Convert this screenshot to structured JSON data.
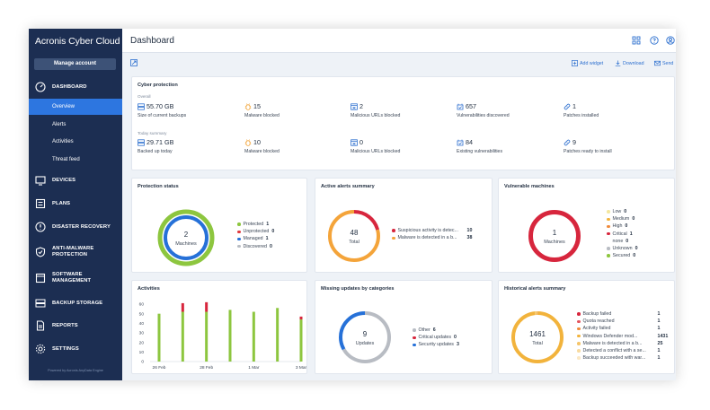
{
  "app": {
    "logo": "Acronis Cyber Cloud",
    "manage_account": "Manage account",
    "powered_by": "Powered by Acronis AnyData Engine"
  },
  "sidebar": {
    "dashboard": "DASHBOARD",
    "sub": [
      "Overview",
      "Alerts",
      "Activities",
      "Threat feed"
    ],
    "devices": "DEVICES",
    "plans": "PLANS",
    "disaster_recovery": "DISASTER RECOVERY",
    "anti_malware": [
      "ANTI-MALWARE",
      "PROTECTION"
    ],
    "software_mgmt": [
      "SOFTWARE",
      "MANAGEMENT"
    ],
    "backup_storage": "BACKUP STORAGE",
    "reports": "REPORTS",
    "settings": "SETTINGS"
  },
  "header": {
    "title": "Dashboard"
  },
  "toolbar": {
    "add_widget": "Add widget",
    "download": "Download",
    "send": "Send"
  },
  "cyber_protection": {
    "title": "Cyber protection",
    "overall_label": "Overall",
    "today_label": "Today summary",
    "overall": [
      {
        "value": "55.70 GB",
        "label": "Size of current backups",
        "icon": "storage-icon"
      },
      {
        "value": "15",
        "label": "Malware blocked",
        "icon": "bug-icon"
      },
      {
        "value": "2",
        "label": "Malicious URLs blocked",
        "icon": "web-block-icon"
      },
      {
        "value": "657",
        "label": "Vulnerabilities discovered",
        "icon": "vulnerability-icon"
      },
      {
        "value": "1",
        "label": "Patches installed",
        "icon": "patch-icon"
      }
    ],
    "today": [
      {
        "value": "29.71 GB",
        "label": "Backed up today",
        "icon": "storage-icon"
      },
      {
        "value": "10",
        "label": "Malware blocked",
        "icon": "bug-icon"
      },
      {
        "value": "0",
        "label": "Malicious URLs blocked",
        "icon": "web-block-icon"
      },
      {
        "value": "84",
        "label": "Existing vulnerabilities",
        "icon": "vulnerability-icon"
      },
      {
        "value": "9",
        "label": "Patches ready to install",
        "icon": "patch-icon"
      }
    ]
  },
  "protection_status": {
    "title": "Protection status",
    "center_value": "2",
    "center_label": "Machines",
    "legend": [
      {
        "label": "Protected",
        "value": "1",
        "color": "#8dc63f"
      },
      {
        "label": "Unprotected",
        "value": "0",
        "color": "#e0393e"
      },
      {
        "label": "Managed",
        "value": "1",
        "color": "#2671d8"
      },
      {
        "label": "Discovered",
        "value": "0",
        "color": "#b8bcc3"
      }
    ]
  },
  "active_alerts": {
    "title": "Active alerts summary",
    "center_value": "48",
    "center_label": "Total",
    "legend": [
      {
        "label": "Suspicious activity is detec...",
        "value": "10",
        "color": "#d7263d"
      },
      {
        "label": "Malware is detected in a b...",
        "value": "38",
        "color": "#f4a43a"
      }
    ]
  },
  "vulnerable_machines": {
    "title": "Vulnerable machines",
    "center_value": "1",
    "center_label": "Machines",
    "legend": [
      {
        "label": "Low",
        "value": "0",
        "color": "#f4e7a0"
      },
      {
        "label": "Medium",
        "value": "0",
        "color": "#f2b33c"
      },
      {
        "label": "High",
        "value": "0",
        "color": "#f08a3b"
      },
      {
        "label": "Critical",
        "value": "1",
        "color": "#d7263d"
      },
      {
        "label": "none",
        "value": "0",
        "color": "#ffffff"
      },
      {
        "label": "Unknown",
        "value": "0",
        "color": "#b8bcc3"
      },
      {
        "label": "Secured",
        "value": "0",
        "color": "#8dc63f"
      }
    ]
  },
  "activities": {
    "title": "Activities"
  },
  "missing_updates": {
    "title": "Missing updates by categories",
    "center_value": "9",
    "center_label": "Updates",
    "legend": [
      {
        "label": "Other",
        "value": "6",
        "color": "#b8bcc3"
      },
      {
        "label": "Critical updates",
        "value": "0",
        "color": "#d7263d"
      },
      {
        "label": "Security updates",
        "value": "3",
        "color": "#2671d8"
      }
    ]
  },
  "historical_alerts": {
    "title": "Historical alerts summary",
    "center_value": "1461",
    "center_label": "Total",
    "legend": [
      {
        "label": "Backup failed",
        "value": "1",
        "color": "#d7263d"
      },
      {
        "label": "Quota reached",
        "value": "1",
        "color": "#e4545e"
      },
      {
        "label": "Activity failed",
        "value": "1",
        "color": "#f08a3b"
      },
      {
        "label": "Windows Defender mod...",
        "value": "1431",
        "color": "#f2b33c"
      },
      {
        "label": "Malware is detected in a b...",
        "value": "25",
        "color": "#f5c56a"
      },
      {
        "label": "Detected a conflict with a se...",
        "value": "1",
        "color": "#f8dba0"
      },
      {
        "label": "Backup succeeded with war...",
        "value": "1",
        "color": "#fbe8c4"
      }
    ]
  },
  "chart_data": {
    "type": "bar",
    "title": "Activities",
    "categories": [
      "26 Feb",
      "",
      "28 Feb",
      "",
      "1 Mar",
      "",
      "3 Mar"
    ],
    "tick_labels": [
      "26 Feb",
      "28 Feb",
      "1 Mar",
      "3 Mar"
    ],
    "series": [
      {
        "name": "",
        "color": "#8dc63f",
        "values": [
          50,
          52,
          52,
          54,
          52,
          56,
          44
        ]
      },
      {
        "name": "",
        "color": "#d7263d",
        "values": [
          0,
          9,
          10,
          0,
          0,
          0,
          3
        ]
      }
    ],
    "ylim": [
      0,
      60
    ],
    "yticks": [
      0,
      10,
      20,
      30,
      40,
      50,
      60
    ],
    "stacked": true
  }
}
